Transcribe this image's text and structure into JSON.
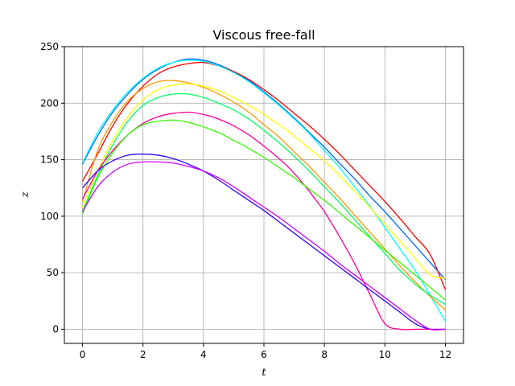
{
  "chart_data": {
    "type": "line",
    "title": "Viscous free-fall",
    "xlabel": "t",
    "ylabel": "z",
    "xlim": [
      -0.6,
      12.6
    ],
    "ylim": [
      -12.5,
      250
    ],
    "xticks": [
      0,
      2,
      4,
      6,
      8,
      10,
      12
    ],
    "yticks": [
      0,
      50,
      100,
      150,
      200,
      250
    ],
    "grid": true,
    "x": [
      0,
      0.5,
      1,
      1.5,
      2,
      2.5,
      3,
      3.5,
      4,
      4.5,
      5,
      5.5,
      6,
      6.5,
      7,
      7.5,
      8,
      8.5,
      9,
      9.5,
      10,
      10.5,
      11,
      11.5,
      12
    ],
    "series": [
      {
        "color": "#0066ff",
        "values": [
          146,
          171,
          192,
          208,
          221,
          230,
          236,
          239,
          238,
          234,
          228,
          220,
          210,
          199,
          187,
          174,
          161,
          147,
          133,
          118,
          104,
          89,
          74,
          59,
          44
        ]
      },
      {
        "color": "#ff0000",
        "values": [
          131,
          155,
          180,
          200,
          215,
          226,
          232,
          235,
          236,
          233,
          228,
          221,
          212,
          202,
          191,
          180,
          168,
          155,
          141,
          127,
          113,
          98,
          82,
          66,
          35
        ]
      },
      {
        "color": "#00ffff",
        "values": [
          147,
          174,
          194,
          210,
          222,
          231,
          236,
          238,
          237,
          233,
          227,
          219,
          209,
          198,
          186,
          173,
          158,
          143,
          126,
          109,
          90,
          71,
          52,
          30,
          7
        ]
      },
      {
        "color": "#ff9900",
        "values": [
          113,
          158,
          184,
          202,
          213,
          219,
          220,
          218,
          214,
          208,
          201,
          192,
          181,
          170,
          157,
          144,
          130,
          116,
          101,
          86,
          71,
          56,
          42,
          29,
          17
        ]
      },
      {
        "color": "#ffff00",
        "values": [
          108,
          140,
          167,
          188,
          203,
          212,
          216,
          217,
          215,
          211,
          205,
          198,
          190,
          181,
          171,
          160,
          149,
          136,
          122,
          108,
          93,
          78,
          63,
          48,
          45
        ]
      },
      {
        "color": "#00ff66",
        "values": [
          104,
          136,
          163,
          184,
          198,
          205,
          208,
          208,
          205,
          200,
          194,
          186,
          176,
          165,
          153,
          140,
          126,
          112,
          97,
          82,
          67,
          52,
          40,
          30,
          22
        ]
      },
      {
        "color": "#ff0099",
        "values": [
          115,
          140,
          158,
          172,
          182,
          188,
          191,
          192,
          190,
          186,
          180,
          172,
          162,
          151,
          138,
          122,
          104,
          82,
          58,
          31,
          5,
          0,
          0,
          0,
          0
        ]
      },
      {
        "color": "#33ff00",
        "values": [
          102,
          134,
          156,
          172,
          181,
          184,
          185,
          183,
          179,
          174,
          167,
          160,
          152,
          143,
          134,
          124,
          114,
          103,
          92,
          81,
          70,
          59,
          48,
          37,
          26
        ]
      },
      {
        "color": "#3300ff",
        "values": [
          125,
          140,
          149,
          154,
          155,
          154,
          151,
          146,
          140,
          132,
          123,
          114,
          105,
          95,
          85,
          75,
          65,
          55,
          45,
          35,
          25,
          15,
          5,
          0,
          0
        ]
      },
      {
        "color": "#cc00ff",
        "values": [
          104,
          126,
          139,
          146,
          148,
          148,
          147,
          144,
          140,
          134,
          126,
          117,
          108,
          99,
          89,
          79,
          69,
          58,
          48,
          38,
          28,
          18,
          8,
          0,
          0
        ]
      }
    ]
  }
}
